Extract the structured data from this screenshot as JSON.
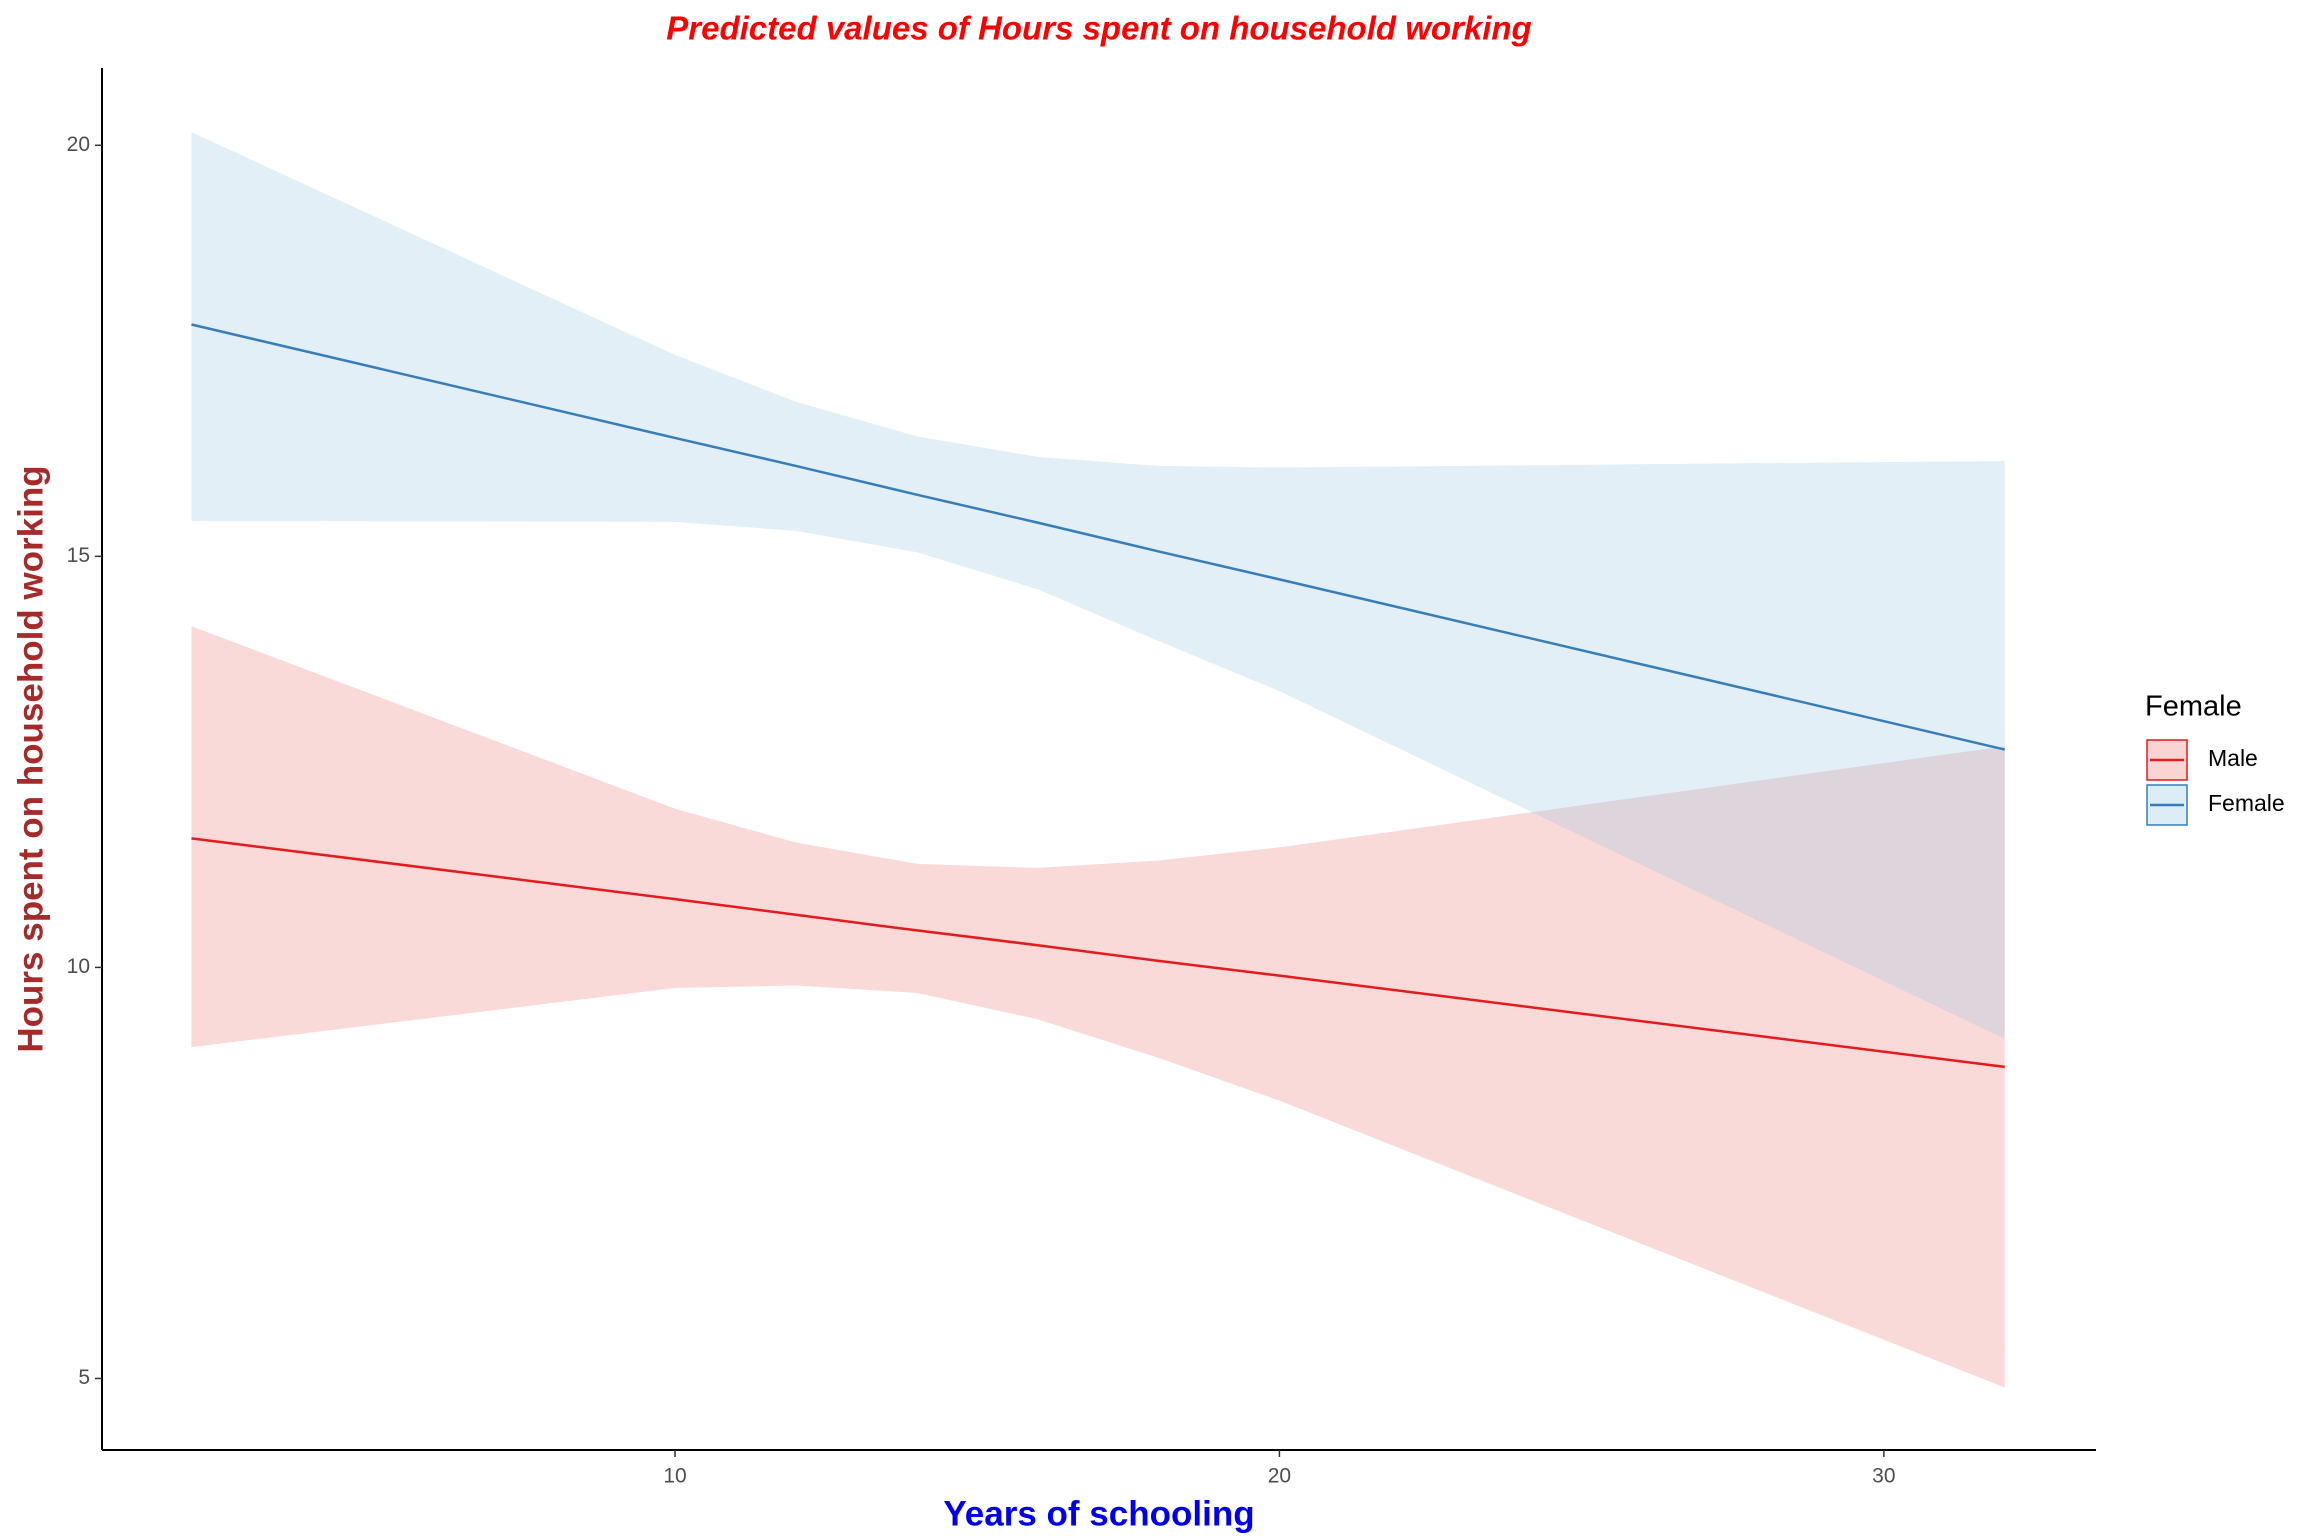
{
  "chart_data": {
    "type": "line",
    "title": "Predicted values of Hours spent on household working",
    "x_label": "Years of schooling",
    "y_label": "Hours spent on household working",
    "legend_title": "Female",
    "legend_position": "right",
    "x": [
      2,
      10,
      12,
      14,
      16,
      18,
      20,
      32
    ],
    "series": [
      {
        "name": "Male",
        "color": "#e41a1c",
        "band_color": "#f08080",
        "values": [
          11.57,
          10.83,
          10.64,
          10.45,
          10.27,
          10.08,
          9.9,
          8.79
        ],
        "lower": [
          9.03,
          9.75,
          9.78,
          9.69,
          9.37,
          8.9,
          8.38,
          4.89
        ],
        "upper": [
          14.15,
          11.93,
          11.52,
          11.26,
          11.21,
          11.3,
          11.46,
          12.69
        ]
      },
      {
        "name": "Female",
        "color": "#377eb8",
        "band_color": "#9ecae1",
        "values": [
          17.82,
          16.44,
          16.1,
          15.75,
          15.41,
          15.06,
          14.72,
          12.65
        ],
        "lower": [
          15.43,
          15.42,
          15.31,
          15.05,
          14.6,
          13.97,
          13.36,
          9.13
        ],
        "upper": [
          20.16,
          17.45,
          16.88,
          16.46,
          16.21,
          16.1,
          16.08,
          16.16
        ]
      }
    ],
    "xlim": [
      0.52,
      33.51
    ],
    "xticks": [
      10,
      20,
      30
    ],
    "ylim": [
      4.13,
      20.94
    ],
    "yticks": [
      5,
      10,
      15,
      20
    ],
    "grid": false
  }
}
